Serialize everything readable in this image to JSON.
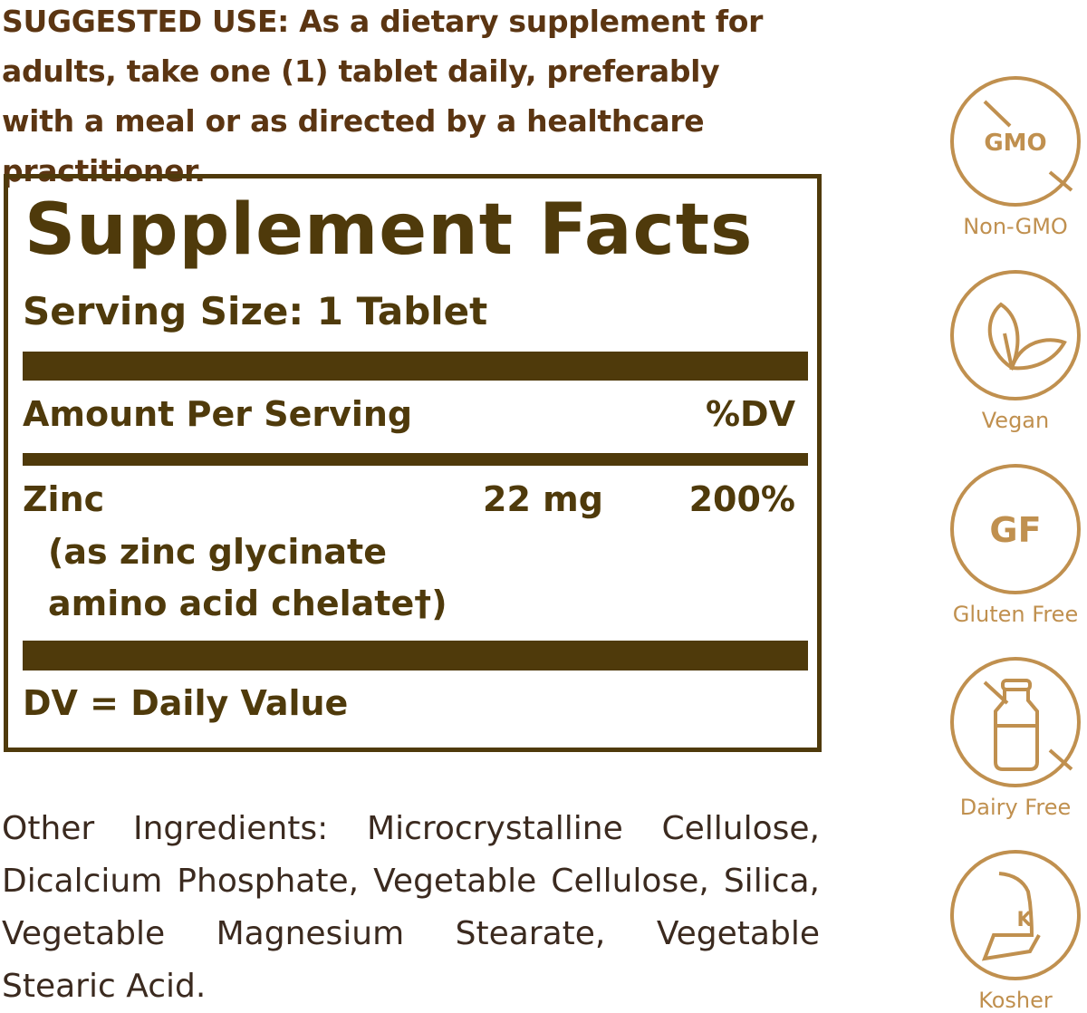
{
  "suggested_use": "SUGGESTED USE: As a dietary supplement for adults, take one (1) tablet daily, preferably with a meal or as directed by a healthcare practitioner.",
  "facts": {
    "title": "Supplement Facts",
    "serving_size": "Serving Size: 1 Tablet",
    "amount_header": "Amount Per Serving",
    "dv_header": "%DV",
    "nutrient": {
      "name": "Zinc",
      "amount": "22 mg",
      "dv": "200%",
      "source_line1": "(as zinc glycinate",
      "source_line2": "amino acid chelate†)"
    },
    "footnote": "DV = Daily Value"
  },
  "other_ingredients": "Other Ingredients: Microcrystalline Cellulose, Dicalcium Phosphate, Vegetable Cellulose, Silica, Vegetable Magnesium Stearate, Vegetable Stearic Acid.",
  "badges": [
    {
      "icon": "no-gmo-icon",
      "label": "Non-GMO",
      "icon_text": "GMO"
    },
    {
      "icon": "leaf-icon",
      "label": "Vegan"
    },
    {
      "icon": "gf-icon",
      "label": "Gluten Free",
      "icon_text": "GF"
    },
    {
      "icon": "no-milk-bottle-icon",
      "label": "Dairy Free"
    },
    {
      "icon": "kosher-icon",
      "label": "Kosher",
      "icon_text": "K"
    }
  ],
  "colors": {
    "label_text": "#5b3512",
    "facts_brown": "#4f3a0b",
    "badge_gold": "#c0904f"
  }
}
